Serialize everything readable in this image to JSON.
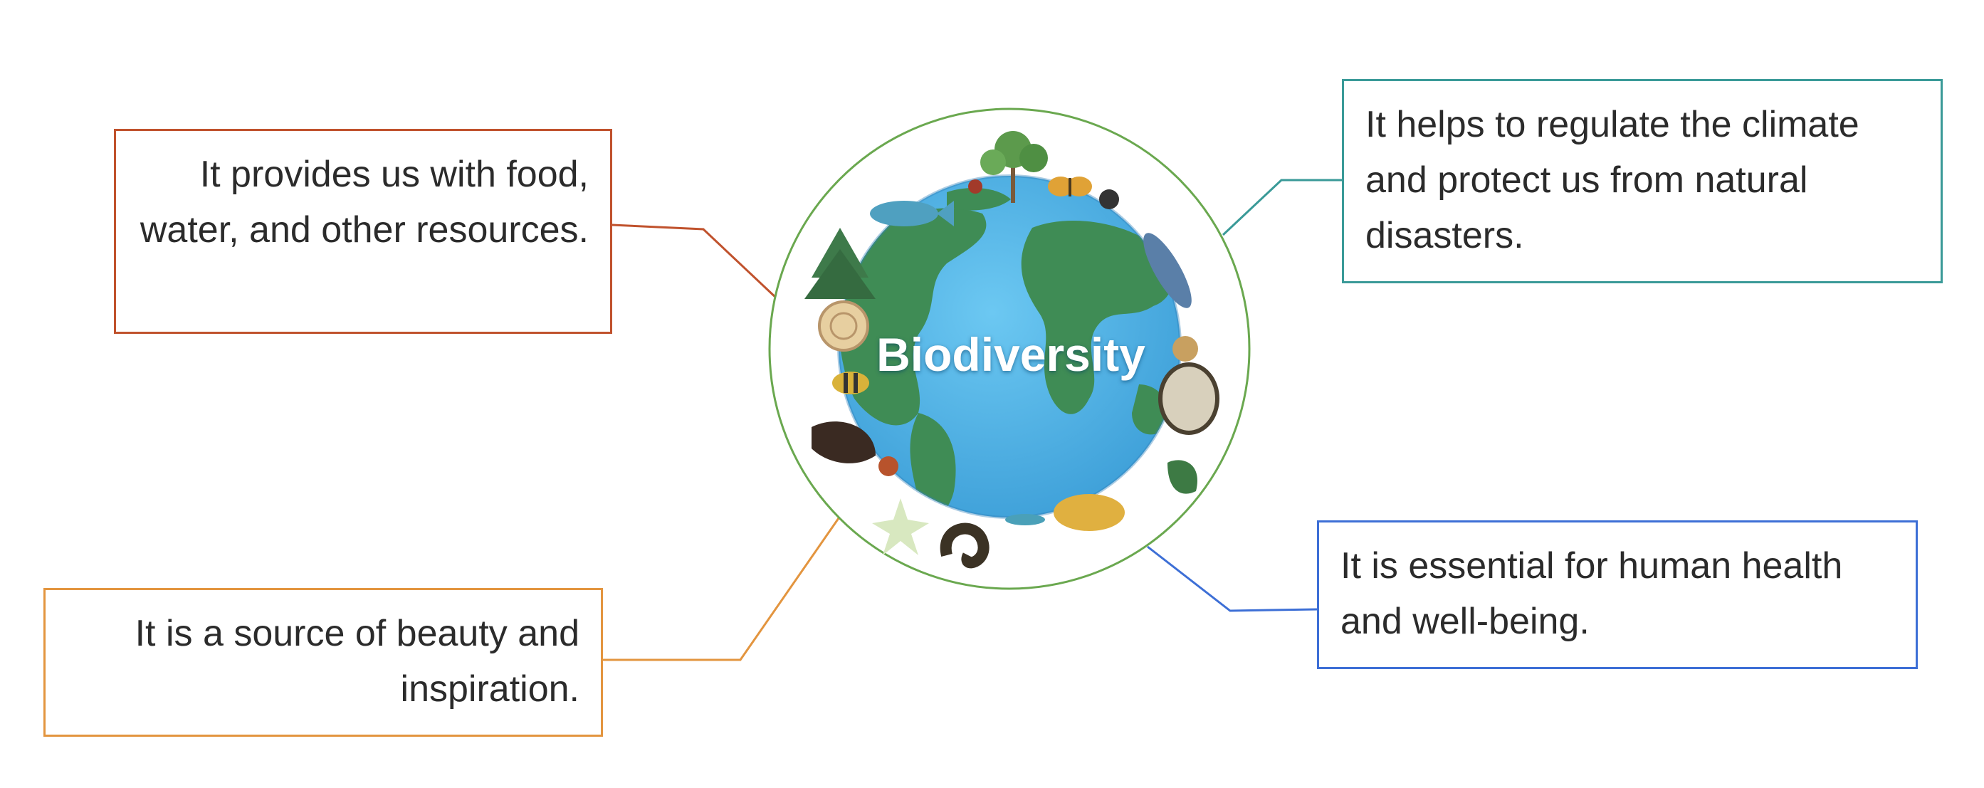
{
  "center": {
    "label": "Biodiversity"
  },
  "benefits": {
    "food": "It provides us with food, water, and other resources.",
    "beauty": "It is a source of beauty and inspiration.",
    "climate": "It helps to regulate the climate and protect us from natural disasters.",
    "health": "It is essential for human health and well-being."
  },
  "colors": {
    "food": "#c0522d",
    "beauty": "#e3953f",
    "climate": "#3a9a98",
    "health": "#3d6fd6",
    "ring": "#6aa84f",
    "ocean": "#5bb8ea",
    "land": "#3f8c55"
  },
  "icons": [
    "globe-icon",
    "tree-icon",
    "butterfly-icon",
    "fish-icon",
    "shell-icon",
    "bee-icon",
    "mushroom-icon",
    "bird-icon"
  ]
}
